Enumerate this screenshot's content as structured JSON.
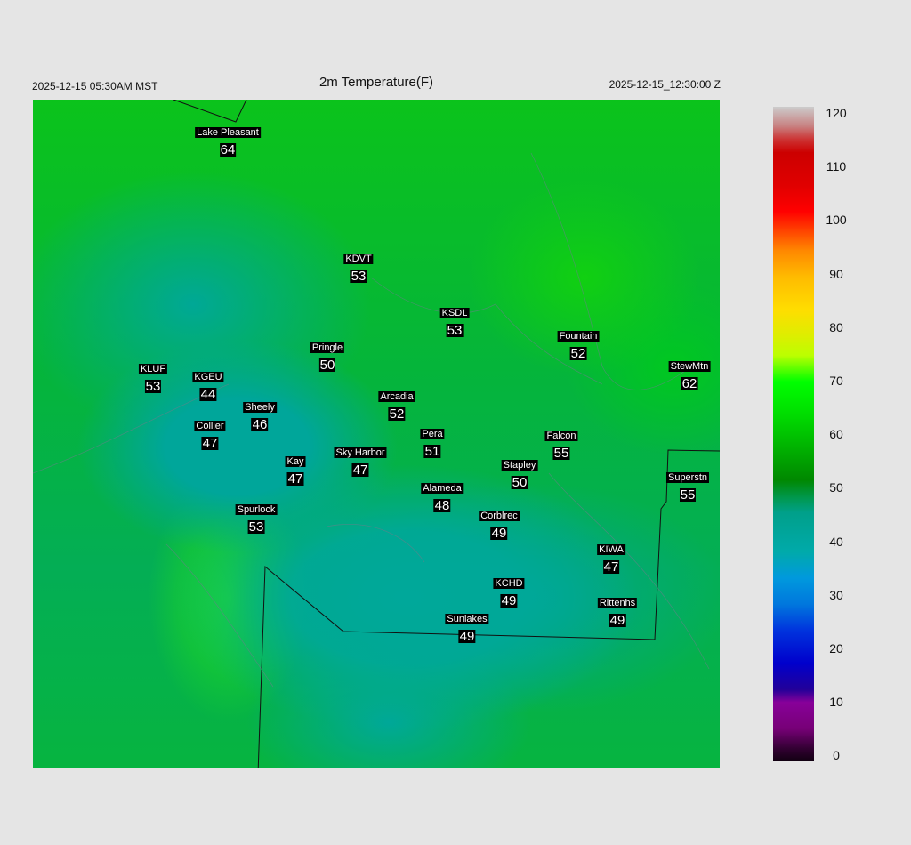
{
  "header": {
    "title": "2m Temperature(F)",
    "local_time": "2025-12-15 05:30AM MST",
    "utc_time": "2025-12-15_12:30:00 Z"
  },
  "colorbar": {
    "ticks": [
      "120",
      "110",
      "100",
      "90",
      "80",
      "70",
      "60",
      "50",
      "40",
      "30",
      "20",
      "10",
      "0"
    ],
    "range": [
      0,
      120
    ],
    "units": "F"
  },
  "stations": [
    {
      "name": "Lake Pleasant",
      "value": "64"
    },
    {
      "name": "KDVT",
      "value": "53"
    },
    {
      "name": "KSDL",
      "value": "53"
    },
    {
      "name": "Fountain",
      "value": "52"
    },
    {
      "name": "StewMtn",
      "value": "62"
    },
    {
      "name": "KLUF",
      "value": "53"
    },
    {
      "name": "KGEU",
      "value": "44"
    },
    {
      "name": "Pringle",
      "value": "50"
    },
    {
      "name": "Arcadia",
      "value": "52"
    },
    {
      "name": "Sheely",
      "value": "46"
    },
    {
      "name": "Collier",
      "value": "47"
    },
    {
      "name": "Pera",
      "value": "51"
    },
    {
      "name": "Falcon",
      "value": "55"
    },
    {
      "name": "Sky Harbor",
      "value": "47"
    },
    {
      "name": "Kay",
      "value": "47"
    },
    {
      "name": "Stapley",
      "value": "50"
    },
    {
      "name": "Superstn",
      "value": "55"
    },
    {
      "name": "Alameda",
      "value": "48"
    },
    {
      "name": "Spurlock",
      "value": "53"
    },
    {
      "name": "Corblrec",
      "value": "49"
    },
    {
      "name": "KIWA",
      "value": "47"
    },
    {
      "name": "KCHD",
      "value": "49"
    },
    {
      "name": "Rittenhs",
      "value": "49"
    },
    {
      "name": "Sunlakes",
      "value": "49"
    }
  ]
}
